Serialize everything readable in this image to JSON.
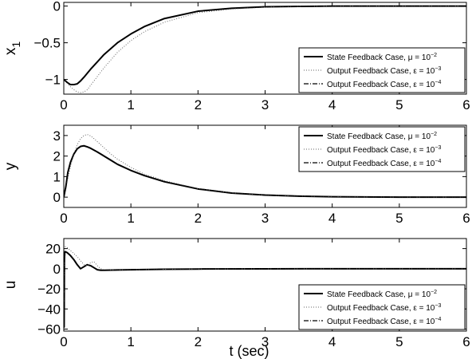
{
  "chart_data": [
    {
      "type": "line",
      "ylabel": "x",
      "ylabel_sub": "1",
      "xlabel": "",
      "xlim": [
        0,
        6
      ],
      "ylim": [
        -1.2,
        0.05
      ],
      "xticks": [
        0,
        1,
        2,
        3,
        4,
        5,
        6
      ],
      "yticks": [
        -1,
        -0.5,
        0
      ],
      "ytick_labels": [
        "−1",
        "−0.5",
        "0"
      ],
      "grid": false,
      "legend_position": "bottom-right",
      "legend": [
        {
          "label": "State Feedback Case, μ = 10",
          "sup": "−2",
          "style": "solid"
        },
        {
          "label": "Output Feedback Case, ε = 10",
          "sup": "−3",
          "style": "dotted"
        },
        {
          "label": "Output Feedback Case, ε = 10",
          "sup": "−4",
          "style": "dashdot"
        }
      ],
      "series": [
        {
          "style": "solid",
          "x": [
            0,
            0.05,
            0.1,
            0.15,
            0.2,
            0.25,
            0.3,
            0.4,
            0.5,
            0.6,
            0.8,
            1.0,
            1.2,
            1.5,
            2.0,
            2.5,
            3.0,
            3.5,
            4.0,
            5.0,
            6.0
          ],
          "y": [
            -1.0,
            -1.04,
            -1.07,
            -1.07,
            -1.06,
            -1.02,
            -0.97,
            -0.86,
            -0.76,
            -0.66,
            -0.5,
            -0.38,
            -0.28,
            -0.17,
            -0.07,
            -0.03,
            -0.01,
            -0.005,
            0,
            0,
            0
          ]
        },
        {
          "style": "dotted",
          "x": [
            0,
            0.05,
            0.1,
            0.15,
            0.2,
            0.25,
            0.3,
            0.35,
            0.4,
            0.5,
            0.6,
            0.8,
            1.0,
            1.2,
            1.5,
            2.0,
            2.5,
            3.0,
            3.5,
            4.0,
            5.0,
            6.0
          ],
          "y": [
            -1.0,
            -1.05,
            -1.1,
            -1.14,
            -1.17,
            -1.18,
            -1.17,
            -1.14,
            -1.08,
            -0.96,
            -0.84,
            -0.63,
            -0.47,
            -0.35,
            -0.22,
            -0.09,
            -0.04,
            -0.015,
            -0.005,
            0,
            0,
            0
          ]
        },
        {
          "style": "dashdot",
          "x": [
            0,
            0.05,
            0.1,
            0.15,
            0.2,
            0.25,
            0.3,
            0.4,
            0.5,
            0.6,
            0.8,
            1.0,
            1.2,
            1.5,
            2.0,
            2.5,
            3.0,
            3.5,
            4.0,
            5.0,
            6.0
          ],
          "y": [
            -1.0,
            -1.04,
            -1.07,
            -1.07,
            -1.06,
            -1.02,
            -0.97,
            -0.86,
            -0.76,
            -0.66,
            -0.5,
            -0.38,
            -0.28,
            -0.17,
            -0.07,
            -0.03,
            -0.01,
            -0.005,
            0,
            0,
            0
          ]
        }
      ]
    },
    {
      "type": "line",
      "ylabel": "y",
      "xlabel": "",
      "xlim": [
        0,
        6
      ],
      "ylim": [
        -0.5,
        3.5
      ],
      "xticks": [
        0,
        1,
        2,
        3,
        4,
        5,
        6
      ],
      "yticks": [
        0,
        1,
        2,
        3
      ],
      "ytick_labels": [
        "0",
        "1",
        "2",
        "3"
      ],
      "grid": false,
      "legend_position": "top-right",
      "legend": [
        {
          "label": "State Feedback Case, μ = 10",
          "sup": "−2",
          "style": "solid"
        },
        {
          "label": "Output Feedback Case, ε = 10",
          "sup": "−3",
          "style": "dotted"
        },
        {
          "label": "Output Feedback Case, ε = 10",
          "sup": "−4",
          "style": "dashdot"
        }
      ],
      "series": [
        {
          "style": "solid",
          "x": [
            0,
            0.03,
            0.06,
            0.1,
            0.15,
            0.2,
            0.25,
            0.3,
            0.35,
            0.4,
            0.5,
            0.6,
            0.7,
            0.8,
            1.0,
            1.2,
            1.5,
            2.0,
            2.5,
            3.0,
            3.5,
            4.0,
            5.0,
            6.0
          ],
          "y": [
            0,
            0.5,
            1.2,
            1.7,
            2.1,
            2.35,
            2.47,
            2.5,
            2.45,
            2.38,
            2.2,
            2.0,
            1.8,
            1.6,
            1.3,
            1.05,
            0.75,
            0.4,
            0.2,
            0.1,
            0.05,
            0.02,
            0,
            0
          ]
        },
        {
          "style": "dotted",
          "x": [
            0,
            0.03,
            0.06,
            0.1,
            0.15,
            0.2,
            0.25,
            0.3,
            0.35,
            0.4,
            0.45,
            0.5,
            0.6,
            0.7,
            0.8,
            1.0,
            1.2,
            1.5,
            2.0,
            2.5,
            3.0,
            3.5,
            4.0,
            5.0,
            6.0
          ],
          "y": [
            0,
            0.35,
            0.9,
            1.5,
            2.1,
            2.55,
            2.85,
            3.0,
            3.05,
            2.98,
            2.85,
            2.7,
            2.4,
            2.1,
            1.85,
            1.45,
            1.12,
            0.8,
            0.42,
            0.21,
            0.1,
            0.05,
            0.02,
            0,
            0
          ]
        },
        {
          "style": "dashdot",
          "x": [
            0,
            0.03,
            0.06,
            0.1,
            0.15,
            0.2,
            0.25,
            0.3,
            0.35,
            0.4,
            0.5,
            0.6,
            0.7,
            0.8,
            1.0,
            1.2,
            1.5,
            2.0,
            2.5,
            3.0,
            3.5,
            4.0,
            5.0,
            6.0
          ],
          "y": [
            0,
            0.5,
            1.2,
            1.7,
            2.1,
            2.35,
            2.47,
            2.5,
            2.45,
            2.38,
            2.2,
            2.0,
            1.8,
            1.6,
            1.3,
            1.05,
            0.75,
            0.4,
            0.2,
            0.1,
            0.05,
            0.02,
            0,
            0
          ]
        }
      ]
    },
    {
      "type": "line",
      "ylabel": "u",
      "xlabel": "t (sec)",
      "xlim": [
        0,
        6
      ],
      "ylim": [
        -62,
        30
      ],
      "xticks": [
        0,
        1,
        2,
        3,
        4,
        5,
        6
      ],
      "yticks": [
        -60,
        -40,
        -20,
        0,
        20
      ],
      "ytick_labels": [
        "−60",
        "−40",
        "−20",
        "0",
        "20"
      ],
      "grid": false,
      "legend_position": "bottom-right",
      "legend": [
        {
          "label": "State Feedback Case, μ = 10",
          "sup": "−2",
          "style": "solid"
        },
        {
          "label": "Output Feedback Case, ε = 10",
          "sup": "−3",
          "style": "dotted"
        },
        {
          "label": "Output Feedback Case, ε = 10",
          "sup": "−4",
          "style": "dashdot"
        }
      ],
      "series": [
        {
          "style": "solid",
          "x": [
            0,
            0.005,
            0.01,
            0.015,
            0.02,
            0.05,
            0.1,
            0.15,
            0.2,
            0.25,
            0.3,
            0.35,
            0.4,
            0.45,
            0.5,
            0.55,
            0.6,
            0.8,
            1.0,
            1.5,
            2.0,
            3.0,
            4.0,
            6.0
          ],
          "y": [
            0,
            -58,
            10,
            16,
            17,
            16,
            13,
            9,
            4,
            0,
            2,
            4,
            3,
            1,
            -1,
            -1.5,
            -1.5,
            -1.2,
            -1,
            -0.5,
            -0.3,
            -0.1,
            0,
            0
          ]
        },
        {
          "style": "dotted",
          "x": [
            0,
            0.005,
            0.01,
            0.015,
            0.02,
            0.05,
            0.1,
            0.15,
            0.2,
            0.25,
            0.3,
            0.35,
            0.4,
            0.45,
            0.5,
            0.55,
            0.6,
            0.8,
            1.0,
            1.5,
            2.0,
            3.0,
            4.0,
            6.0
          ],
          "y": [
            0,
            -45,
            8,
            19,
            22,
            21,
            18,
            15,
            12,
            8,
            4,
            3,
            6,
            7,
            3,
            0,
            -1,
            -1.2,
            -1,
            -0.5,
            -0.3,
            -0.1,
            0,
            0
          ]
        },
        {
          "style": "dashdot",
          "x": [
            0,
            0.005,
            0.01,
            0.015,
            0.02,
            0.05,
            0.1,
            0.15,
            0.2,
            0.25,
            0.3,
            0.35,
            0.4,
            0.45,
            0.5,
            0.55,
            0.6,
            0.8,
            1.0,
            1.5,
            2.0,
            3.0,
            4.0,
            6.0
          ],
          "y": [
            0,
            -58,
            10,
            16,
            17,
            16,
            13,
            9,
            4,
            0,
            2,
            4,
            3,
            1,
            -1,
            -1.5,
            -1.5,
            -1.2,
            -1,
            -0.5,
            -0.3,
            -0.1,
            0,
            0
          ]
        }
      ]
    }
  ]
}
